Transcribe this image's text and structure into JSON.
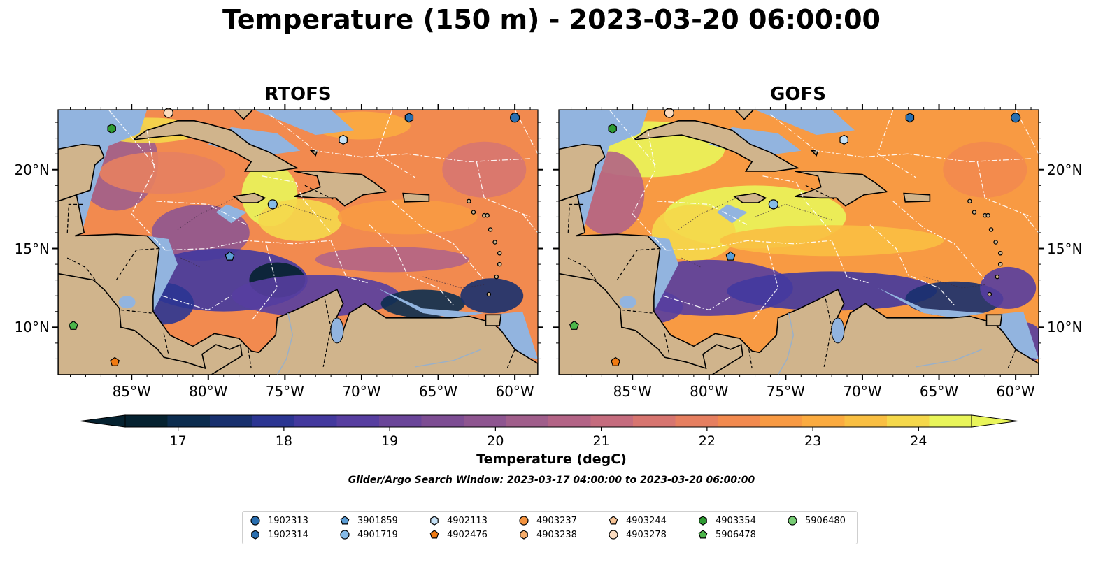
{
  "title": "Temperature (150 m) - 2023-03-20 06:00:00",
  "panels": [
    {
      "title": "RTOFS",
      "id": "rtofs"
    },
    {
      "title": "GOFS",
      "id": "gofs"
    }
  ],
  "map": {
    "lon_range": [
      -89.8,
      -58.5
    ],
    "lat_range": [
      7.0,
      23.8
    ],
    "lon_ticks": [
      {
        "value": -85,
        "label": "85°W"
      },
      {
        "value": -80,
        "label": "80°W"
      },
      {
        "value": -75,
        "label": "75°W"
      },
      {
        "value": -70,
        "label": "70°W"
      },
      {
        "value": -65,
        "label": "65°W"
      },
      {
        "value": -60,
        "label": "60°W"
      }
    ],
    "lat_ticks": [
      {
        "value": 20,
        "label": "20°N"
      },
      {
        "value": 15,
        "label": "15°N"
      },
      {
        "value": 10,
        "label": "10°N"
      }
    ],
    "colors": {
      "land": "#d0b48c",
      "shallow_water": "#92b4df",
      "boundary": "#000000",
      "eez_lines": "#ffffff"
    }
  },
  "colorbar": {
    "label": "Temperature (degC)",
    "min": 16.5,
    "max": 24.5,
    "step": 0.5,
    "ticks": [
      "17",
      "18",
      "19",
      "20",
      "21",
      "22",
      "23",
      "24"
    ],
    "tick_values": [
      17,
      18,
      19,
      20,
      21,
      22,
      23,
      24
    ],
    "extend": "both",
    "colors": [
      "#052230",
      "#0c2d4f",
      "#18306e",
      "#2b3592",
      "#43399e",
      "#573ea0",
      "#6a4599",
      "#7d4d93",
      "#8e5590",
      "#a05e8b",
      "#b36486",
      "#c56c7e",
      "#d77570",
      "#e67f60",
      "#f28a4f",
      "#f89a43",
      "#fbab40",
      "#f9bf42",
      "#f5d84b",
      "#e9f55a"
    ]
  },
  "search_window": "Glider/Argo Search Window: 2023-03-17 04:00:00 to 2023-03-20 06:00:00",
  "legend": [
    {
      "id": "1902313",
      "marker": "circle",
      "color": "#2a6fb0"
    },
    {
      "id": "1902314",
      "marker": "hexagon",
      "color": "#2a6fb0"
    },
    {
      "id": "3901859",
      "marker": "pentagon",
      "color": "#5c9ed6"
    },
    {
      "id": "4901719",
      "marker": "circle",
      "color": "#86bbe8"
    },
    {
      "id": "4902113",
      "marker": "hexagon",
      "color": "#c6e2f7"
    },
    {
      "id": "4902476",
      "marker": "pentagon",
      "color": "#f07a12"
    },
    {
      "id": "4903237",
      "marker": "circle",
      "color": "#f4933f"
    },
    {
      "id": "4903238",
      "marker": "hexagon",
      "color": "#f6ad6b"
    },
    {
      "id": "4903244",
      "marker": "pentagon",
      "color": "#f8c496"
    },
    {
      "id": "4903278",
      "marker": "circle",
      "color": "#fbdcc0"
    },
    {
      "id": "4903354",
      "marker": "hexagon",
      "color": "#2e9b32"
    },
    {
      "id": "5906478",
      "marker": "pentagon",
      "color": "#4cb64a"
    },
    {
      "id": "5906480",
      "marker": "circle",
      "color": "#77cc74"
    }
  ],
  "floats_on_map": [
    {
      "id": "1902313",
      "lon": -60.0,
      "lat": 23.3
    },
    {
      "id": "1902314",
      "lon": -66.9,
      "lat": 23.3
    },
    {
      "id": "4903278",
      "lon": -82.6,
      "lat": 23.6
    },
    {
      "id": "4903354",
      "lon": -86.3,
      "lat": 22.6
    },
    {
      "id": "4902113",
      "lon": -71.2,
      "lat": 21.9
    },
    {
      "id": "4901719",
      "lon": -75.8,
      "lat": 17.8
    },
    {
      "id": "3901859",
      "lon": -78.6,
      "lat": 14.5
    },
    {
      "id": "5906478",
      "lon": -88.8,
      "lat": 10.1
    },
    {
      "id": "4902476",
      "lon": -86.1,
      "lat": 7.8
    }
  ]
}
